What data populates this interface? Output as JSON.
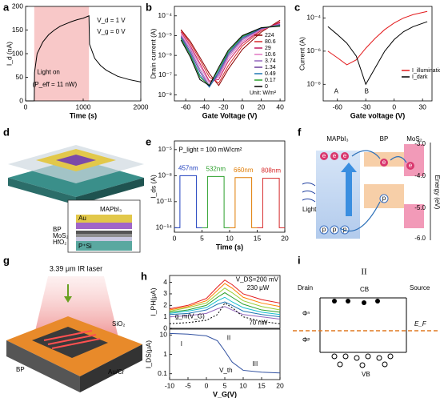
{
  "chart_data": [
    {
      "type": "line",
      "label": "a",
      "xlabel": "Time (s)",
      "ylabel": "I_d (nA)",
      "xlim": [
        0,
        2000
      ],
      "xticks": [
        0,
        1000,
        2000
      ],
      "ylim": [
        0,
        200
      ],
      "yticks": [
        0,
        50,
        100,
        150,
        200
      ],
      "shade": [
        150,
        1100
      ],
      "shade_color": "#f8c8c8",
      "x": [
        0,
        150,
        155,
        200,
        300,
        400,
        500,
        600,
        700,
        800,
        900,
        1000,
        1100,
        1110,
        1200,
        1300,
        1400,
        1600,
        1800,
        2000
      ],
      "series": [
        {
          "color": "#000000",
          "values": [
            0,
            0,
            60,
            100,
            125,
            140,
            150,
            158,
            163,
            168,
            172,
            175,
            180,
            120,
            90,
            75,
            65,
            52,
            45,
            40
          ]
        }
      ],
      "annotations": [
        "V_d = 1 V",
        "V_g = 0 V",
        "Light on",
        "(P_eff = 11 nW)"
      ]
    },
    {
      "type": "line",
      "label": "b",
      "xlabel": "Gate Voltage (V)",
      "ylabel": "Drain current (A)",
      "log_y": true,
      "xlim": [
        -72,
        45
      ],
      "xticks": [
        -60,
        -40,
        -20,
        0,
        20,
        40
      ],
      "ylim": [
        5e-09,
        0.0003
      ],
      "yticks": [
        {
          "value": 0.0001,
          "label": "10⁻⁴"
        },
        {
          "value": 1e-05,
          "label": "10⁻⁵"
        },
        {
          "value": 1e-06,
          "label": "10⁻⁶"
        },
        {
          "value": 1e-07,
          "label": "10⁻⁷"
        },
        {
          "value": 1e-08,
          "label": "10⁻⁸"
        }
      ],
      "x": [
        -65,
        -55,
        -45,
        -35,
        -25,
        -15,
        0,
        20,
        40
      ],
      "legend": true,
      "legend_note": "Unit: W/m²",
      "series": [
        {
          "name": "224",
          "color": "#8b0000",
          "values": [
            2e-05,
            5e-06,
            8e-07,
            1.2e-07,
            3e-08,
            2e-07,
            2e-06,
            1.5e-05,
            6e-05
          ]
        },
        {
          "name": "80.6",
          "color": "#d62728",
          "values": [
            1.8e-05,
            4e-06,
            6e-07,
            8e-08,
            4e-08,
            3e-07,
            3e-06,
            1.8e-05,
            5e-05
          ]
        },
        {
          "name": "29",
          "color": "#c2185b",
          "values": [
            1.5e-05,
            3e-06,
            4e-07,
            5e-08,
            6e-08,
            5e-07,
            4e-06,
            2e-05,
            4.5e-05
          ]
        },
        {
          "name": "10.6",
          "color": "#e377c2",
          "values": [
            1.2e-05,
            2.5e-06,
            3e-07,
            4e-08,
            8e-08,
            7e-07,
            5e-06,
            2e-05,
            4e-05
          ]
        },
        {
          "name": "3.74",
          "color": "#9467bd",
          "values": [
            1e-05,
            2e-06,
            2e-07,
            3e-08,
            1e-07,
            9e-07,
            6e-06,
            2.2e-05,
            3.8e-05
          ]
        },
        {
          "name": "1.34",
          "color": "#6a3d9a",
          "values": [
            9e-06,
            1.5e-06,
            1.5e-07,
            2.5e-08,
            1.3e-07,
            1.1e-06,
            7e-06,
            2.3e-05,
            3.5e-05
          ]
        },
        {
          "name": "0.49",
          "color": "#1f77b4",
          "values": [
            8e-06,
            1.2e-06,
            1e-07,
            2.5e-08,
            1.6e-07,
            1.3e-06,
            8e-06,
            2.4e-05,
            3.3e-05
          ]
        },
        {
          "name": "0.17",
          "color": "#2ca02c",
          "values": [
            7e-06,
            1e-06,
            8e-08,
            3e-08,
            2e-07,
            1.5e-06,
            9e-06,
            2.5e-05,
            3.2e-05
          ]
        },
        {
          "name": "0",
          "color": "#000000",
          "values": [
            6e-06,
            8e-07,
            6e-08,
            3e-08,
            2.5e-07,
            1.8e-06,
            1e-05,
            2.5e-05,
            3e-05
          ]
        }
      ]
    },
    {
      "type": "line",
      "label": "c",
      "xlabel": "Gate voltage (V)",
      "ylabel": "Current (A)",
      "log_y": true,
      "xlim": [
        -75,
        40
      ],
      "xticks": [
        -60,
        -30,
        0,
        30
      ],
      "ylim": [
        1e-09,
        0.0005
      ],
      "yticks": [
        {
          "value": 0.0001,
          "label": "10⁻⁴"
        },
        {
          "value": 1e-06,
          "label": "10⁻⁶"
        },
        {
          "value": 1e-08,
          "label": "10⁻⁸"
        }
      ],
      "x": [
        -70,
        -60,
        -50,
        -40,
        -30,
        -20,
        -10,
        0,
        10,
        20,
        35
      ],
      "legend": true,
      "series": [
        {
          "name": "I_illumination",
          "color": "#e31a1c",
          "values": [
            1e-06,
            4e-07,
            1.5e-07,
            3e-07,
            1.5e-06,
            6e-06,
            2e-05,
            5e-05,
            0.0001,
            0.00016,
            0.00025
          ]
        },
        {
          "name": "I_dark",
          "color": "#000000",
          "values": [
            3e-05,
            1e-05,
            3e-06,
            5e-07,
            1e-08,
            1e-07,
            1e-06,
            5e-06,
            1.5e-05,
            3e-05,
            6e-05
          ]
        }
      ],
      "annotations": [
        "A",
        "B"
      ]
    },
    {
      "type": "line",
      "label": "e",
      "xlabel": "Time (s)",
      "ylabel": "I_ds (A)",
      "log_y": true,
      "xlim": [
        0,
        20
      ],
      "xticks": [
        0,
        5,
        10,
        15,
        20
      ],
      "ylim": [
        3e-15,
        0.0001
      ],
      "yticks": [
        {
          "value": 1e-05,
          "label": "10⁻⁵"
        },
        {
          "value": 1e-08,
          "label": "10⁻⁸"
        },
        {
          "value": 1e-11,
          "label": "10⁻¹¹"
        },
        {
          "value": 1e-14,
          "label": "10⁻¹⁴"
        }
      ],
      "name_labels": true,
      "series": [
        {
          "name": "457nm",
          "color": "#1f3fbf",
          "x": [
            0,
            1,
            1,
            4,
            4,
            5
          ],
          "values": [
            1e-14,
            1e-14,
            1e-08,
            1e-08,
            1e-14,
            1e-14
          ]
        },
        {
          "name": "532nm",
          "color": "#2ca02c",
          "x": [
            5,
            6,
            6,
            9,
            9,
            10
          ],
          "values": [
            1e-14,
            1e-14,
            8e-09,
            8e-09,
            1e-14,
            1e-14
          ]
        },
        {
          "name": "660nm",
          "color": "#e07b00",
          "x": [
            10,
            11,
            11,
            14,
            14,
            15
          ],
          "values": [
            1e-14,
            1e-14,
            6e-09,
            6e-09,
            1e-14,
            1e-14
          ]
        },
        {
          "name": "808nm",
          "color": "#d62728",
          "x": [
            15,
            16,
            16,
            19,
            19,
            20
          ],
          "values": [
            1e-14,
            1e-14,
            5e-09,
            5e-09,
            1e-14,
            1e-14
          ]
        }
      ],
      "annotations": [
        "P_light = 100 mW/cm²"
      ]
    },
    {
      "type": "line",
      "label": "h",
      "ylabel": "I_PH(μA)",
      "xlim": [
        -10,
        20
      ],
      "ylim": [
        0,
        4.6
      ],
      "yticks": [
        0,
        1,
        2,
        3,
        4
      ],
      "x": [
        -10,
        -5,
        0,
        3,
        5,
        7,
        10,
        15,
        20
      ],
      "series": [
        {
          "color": "#e31a1c",
          "values": [
            1.7,
            2.0,
            2.6,
            3.6,
            4.2,
            3.8,
            3.0,
            2.5,
            2.2
          ]
        },
        {
          "color": "#ff7f00",
          "values": [
            1.6,
            1.9,
            2.4,
            3.3,
            3.9,
            3.5,
            2.7,
            2.2,
            1.9
          ]
        },
        {
          "color": "#9acd32",
          "values": [
            1.5,
            1.8,
            2.2,
            3.0,
            3.5,
            3.1,
            2.4,
            1.9,
            1.6
          ]
        },
        {
          "color": "#2ca02c",
          "values": [
            1.4,
            1.6,
            2.0,
            2.7,
            3.1,
            2.7,
            2.1,
            1.6,
            1.4
          ]
        },
        {
          "color": "#17becf",
          "values": [
            1.3,
            1.5,
            1.8,
            2.4,
            2.7,
            2.3,
            1.8,
            1.4,
            1.2
          ]
        },
        {
          "color": "#1f77b4",
          "values": [
            1.2,
            1.3,
            1.6,
            2.1,
            2.3,
            2.0,
            1.5,
            1.2,
            1.0
          ]
        },
        {
          "color": "#9467bd",
          "values": [
            1.0,
            1.1,
            1.3,
            1.7,
            1.9,
            1.6,
            1.2,
            1.0,
            0.8
          ]
        },
        {
          "color": "#000000",
          "dash": true,
          "values": [
            0.4,
            0.5,
            0.7,
            1.2,
            2.2,
            1.8,
            1.0,
            0.6,
            0.4
          ]
        }
      ],
      "annotations": [
        "V_DS=200 mV",
        "230 μW",
        "70 nW",
        "g_m(V_G)"
      ]
    },
    {
      "type": "line",
      "xlabel": "V_G(V)",
      "ylabel": "I_DS(μA)",
      "log_y": true,
      "xlim": [
        -10,
        20
      ],
      "xticks": [
        -10,
        -5,
        0,
        5,
        10,
        15,
        20
      ],
      "ylim": [
        0.05,
        20
      ],
      "yticks": [
        0.1,
        1,
        10
      ],
      "x": [
        -10,
        -5,
        0,
        3,
        5,
        7,
        10,
        15,
        20
      ],
      "series": [
        {
          "color": "#3050a0",
          "values": [
            12,
            11,
            9,
            5,
            1.5,
            0.4,
            0.15,
            0.12,
            0.11
          ]
        }
      ],
      "annotations": [
        "I",
        "II",
        "III",
        "V_th"
      ]
    }
  ],
  "diagrams": {
    "d": {
      "label": "d",
      "texts": [
        "MAPbI₃",
        "Au",
        "BP",
        "MoS₂",
        "HfO₂",
        "P⁺Si"
      ]
    },
    "f": {
      "label": "f",
      "layers": [
        "MAPbI₃",
        "BP",
        "MoS₂"
      ],
      "light": "Light",
      "electron": "e",
      "hole": "p",
      "axis_label": "Energy (eV)",
      "ticks": [
        "-3.0",
        "-4.0",
        "-5.0",
        "-6.0"
      ]
    },
    "g": {
      "label": "g",
      "texts": [
        "3.39 μm IR laser",
        "SiO₂",
        "BP",
        "Si",
        "Au/Cr"
      ]
    },
    "i": {
      "label": "i",
      "region": "II",
      "texts": [
        "Drain",
        "Source",
        "CB",
        "Φⁿ",
        "Φᵖ",
        "E_F",
        "VB"
      ]
    }
  }
}
